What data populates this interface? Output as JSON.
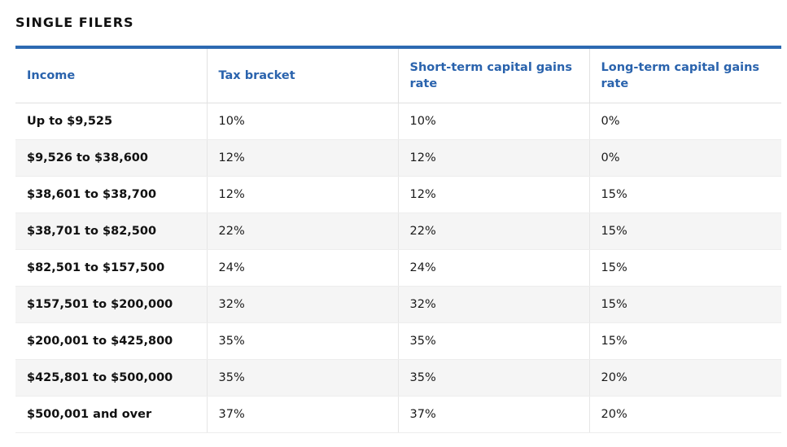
{
  "title": "SINGLE FILERS",
  "table": {
    "headers": [
      "Income",
      "Tax bracket",
      "Short-term capital gains rate",
      "Long-term capital gains rate"
    ],
    "rows": [
      [
        "Up to $9,525",
        "10%",
        "10%",
        "0%"
      ],
      [
        "$9,526 to $38,600",
        "12%",
        "12%",
        "0%"
      ],
      [
        "$38,601 to $38,700",
        "12%",
        "12%",
        "15%"
      ],
      [
        "$38,701 to $82,500",
        "22%",
        "22%",
        "15%"
      ],
      [
        "$82,501 to $157,500",
        "24%",
        "24%",
        "15%"
      ],
      [
        "$157,501 to $200,000",
        "32%",
        "32%",
        "15%"
      ],
      [
        "$200,001 to $425,800",
        "35%",
        "35%",
        "15%"
      ],
      [
        "$425,801 to $500,000",
        "35%",
        "35%",
        "20%"
      ],
      [
        "$500,001 and over",
        "37%",
        "37%",
        "20%"
      ]
    ]
  },
  "colors": {
    "accent": "#2d6ab2",
    "header_text": "#2a63ad",
    "stripe": "#f5f5f5"
  }
}
